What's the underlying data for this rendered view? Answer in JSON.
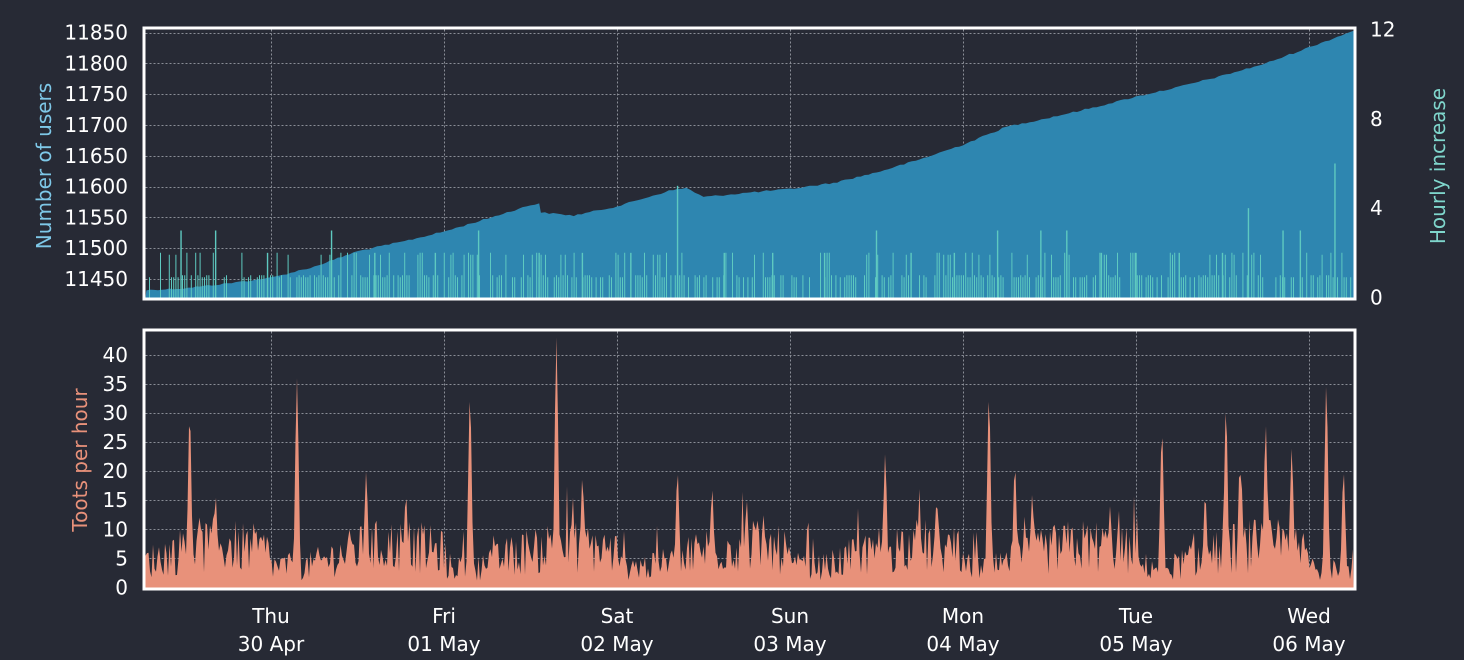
{
  "colors": {
    "background": "#272a35",
    "users_area": "#2e86b0",
    "hourly_increase": "#5ec9c0",
    "toots": "#e8917a",
    "frame": "#ffffff",
    "grid": "#8a8d96",
    "users_label": "#7ec8e8",
    "hourly_label": "#7fd6cc",
    "toots_label": "#e8917a"
  },
  "chart_data": [
    {
      "type": "area",
      "name": "users-panel",
      "ylabel": "Number of users",
      "y2label": "Hourly increase",
      "ylim": [
        11420,
        11855
      ],
      "y_ticks": [
        11450,
        11500,
        11550,
        11600,
        11650,
        11700,
        11750,
        11800,
        11850
      ],
      "y2lim": [
        0,
        12
      ],
      "y2_ticks": [
        0,
        4,
        8,
        12
      ],
      "grid": true,
      "x_days": [
        "Thu 30 Apr",
        "Fri 01 May",
        "Sat 02 May",
        "Sun 03 May",
        "Mon 04 May",
        "Tue 05 May",
        "Wed 06 May"
      ],
      "users_series": {
        "x_day": [
          -0.72,
          -0.5,
          -0.25,
          0,
          0.25,
          0.5,
          0.75,
          1.0,
          1.25,
          1.5,
          1.55,
          1.56,
          1.75,
          2.0,
          2.3,
          2.4,
          2.5,
          2.75,
          3.0,
          3.25,
          3.5,
          3.75,
          4.0,
          4.25,
          4.5,
          4.75,
          5.0,
          5.25,
          5.5,
          5.75,
          6.0,
          6.27
        ],
        "users": [
          11432,
          11435,
          11443,
          11452,
          11470,
          11495,
          11510,
          11527,
          11548,
          11570,
          11573,
          11558,
          11553,
          11568,
          11593,
          11598,
          11583,
          11590,
          11596,
          11606,
          11623,
          11644,
          11668,
          11697,
          11712,
          11728,
          11746,
          11762,
          11780,
          11800,
          11826,
          11853
        ]
      },
      "hourly_increase_spikes": {
        "x_day": [
          -0.52,
          -0.32,
          -0.02,
          0.35,
          0.6,
          0.95,
          1.2,
          1.55,
          1.8,
          2.08,
          2.35,
          2.62,
          2.9,
          3.2,
          3.5,
          3.7,
          3.95,
          4.2,
          4.45,
          4.6,
          4.8,
          5.0,
          5.25,
          5.5,
          5.65,
          5.85,
          5.95,
          6.15
        ],
        "value": [
          3,
          3,
          2,
          3,
          2,
          2,
          3,
          2,
          2,
          2,
          5,
          2,
          2,
          2,
          3,
          2,
          2,
          3,
          3,
          3,
          2,
          2,
          2,
          2,
          4,
          3,
          3,
          6
        ]
      }
    },
    {
      "type": "area",
      "name": "toots-panel",
      "ylabel": "Toots per hour",
      "ylim": [
        0,
        44
      ],
      "y_ticks": [
        0,
        5,
        10,
        15,
        20,
        25,
        30,
        35,
        40
      ],
      "grid": true,
      "x_tick_labels": [
        {
          "day": "Thu",
          "date": "30 Apr"
        },
        {
          "day": "Fri",
          "date": "01 May"
        },
        {
          "day": "Sat",
          "date": "02 May"
        },
        {
          "day": "Sun",
          "date": "03 May"
        },
        {
          "day": "Mon",
          "date": "04 May"
        },
        {
          "day": "Tue",
          "date": "05 May"
        },
        {
          "day": "Wed",
          "date": "06 May"
        }
      ],
      "spikes": {
        "x_day": [
          -0.47,
          0.15,
          0.55,
          0.78,
          1.15,
          1.65,
          1.8,
          2.35,
          2.55,
          2.75,
          3.55,
          3.85,
          4.15,
          4.3,
          4.4,
          4.85,
          5.15,
          5.4,
          5.52,
          5.6,
          5.75,
          5.9,
          6.1,
          6.2
        ],
        "value": [
          30,
          36,
          20,
          16,
          33,
          43,
          19,
          20,
          17,
          15,
          23,
          14,
          33,
          21,
          16,
          14,
          27,
          16,
          31,
          21,
          28,
          24,
          35,
          20
        ]
      }
    }
  ]
}
